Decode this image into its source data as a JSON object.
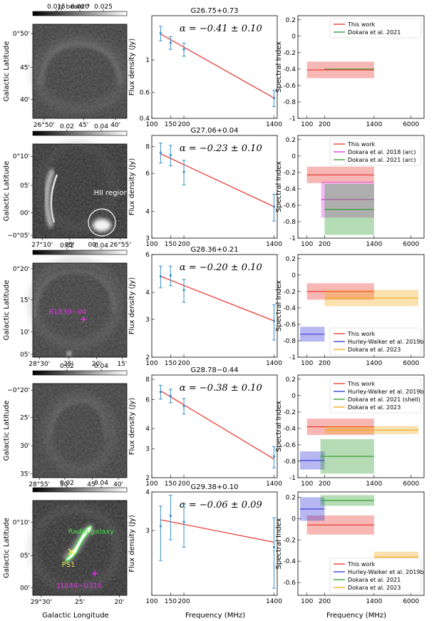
{
  "xlabels": {
    "image": "Galactic Longitude",
    "flux": "Frequency (MHz)",
    "index": "Frequency (MHz)"
  },
  "ylabels": {
    "image": "Galactic Latitude",
    "flux": "Flux density (Jy)",
    "index": "Spectral Index"
  },
  "colorbar_label": "Jy beam⁻¹",
  "colors": {
    "this_work": "#e8312a",
    "hw": "#3030d8",
    "dokara2018": "#dd33dd",
    "dokara2021": "#2a9a2a",
    "dokara2023": "#f2a81c",
    "errbar": "#3a8fc8",
    "annot_hii": "#ffffff",
    "annot_magenta": "#dd33dd",
    "annot_green": "#4ddc4d",
    "annot_yellow": "#e8e84a"
  },
  "chart_data": [
    {
      "type": "image",
      "colorbar_ticks": [
        "0.015",
        "0.020",
        "0.025"
      ],
      "colorbar_range": [
        0.01,
        0.03
      ],
      "colorbar_ticks_values": [
        0.015,
        0.02,
        0.025
      ],
      "x_ticks": [
        "26°50'",
        "45'",
        "40'"
      ],
      "y_ticks": [
        "0°50'",
        "45'",
        "40'"
      ],
      "annotations": []
    },
    {
      "type": "scatter",
      "title": "G26.75+0.73",
      "alpha_label": "α = −0.41 ± 0.10",
      "x": [
        121,
        150,
        200,
        1400
      ],
      "y": [
        1.52,
        1.31,
        1.18,
        0.55
      ],
      "yerr_low": [
        0.17,
        0.13,
        0.12,
        0.07
      ],
      "yerr_high": [
        0.17,
        0.13,
        0.12,
        0.07
      ],
      "fit": {
        "x": [
          121,
          1400
        ],
        "y": [
          1.5,
          0.55
        ]
      },
      "xlim": [
        100,
        1500
      ],
      "ylim": [
        0.4,
        2.0
      ],
      "xticks": [
        100,
        150,
        200,
        1400
      ],
      "xtick_labels": [
        "100",
        "150",
        "200",
        "1400"
      ],
      "yticks": [
        0.4,
        0.6,
        1
      ],
      "ytick_labels": [
        "0.4",
        "0.6",
        "1"
      ]
    },
    {
      "type": "spectral_index",
      "xlim": [
        70,
        10000
      ],
      "ylim": [
        -1.0,
        0.25
      ],
      "xticks": [
        100,
        200,
        1400,
        6000
      ],
      "xtick_labels": [
        "100",
        "200",
        "1400",
        "6000"
      ],
      "yticks": [
        -1.0,
        -0.8,
        -0.6,
        -0.4,
        -0.2,
        0,
        0.2
      ],
      "ytick_labels": [
        "-1",
        "-0.8",
        "-0.6",
        "-0.4",
        "-0.2",
        "0",
        "0.2"
      ],
      "legend": [
        "This work",
        "Dokara et al. 2021"
      ],
      "legend_keys": [
        "this_work",
        "dokara2021"
      ],
      "legend_pos": "top-right",
      "series": [
        {
          "name": "This work",
          "key": "this_work",
          "x0": 100,
          "x1": 1400,
          "value": -0.41,
          "err": 0.1
        },
        {
          "name": "Dokara et al. 2021",
          "key": "dokara2021",
          "x0": 200,
          "x1": 1400,
          "value": -0.4,
          "err": 0.0
        }
      ]
    },
    {
      "type": "image",
      "colorbar_ticks": [
        "0.02",
        "0.04"
      ],
      "colorbar_range": [
        0.0,
        0.055
      ],
      "colorbar_ticks_values": [
        0.02,
        0.04
      ],
      "x_ticks": [
        "27°10'",
        "05'",
        "00'",
        "26°55'"
      ],
      "y_ticks": [
        "0°10'",
        "05'",
        "00'",
        "−0°05'"
      ],
      "annotations": [
        {
          "label": "HII region",
          "color_key": "annot_hii"
        }
      ]
    },
    {
      "type": "scatter",
      "title": "G27.06+0.04",
      "alpha_label": "α = −0.23 ± 0.10",
      "x": [
        121,
        150,
        200,
        1400
      ],
      "y": [
        7.5,
        7.3,
        6.1,
        4.2
      ],
      "yerr_low": [
        0.8,
        0.8,
        0.8,
        0.6
      ],
      "yerr_high": [
        0.8,
        0.8,
        0.8,
        0.6
      ],
      "fit": {
        "x": [
          121,
          1400
        ],
        "y": [
          7.4,
          4.2
        ]
      },
      "xlim": [
        100,
        1500
      ],
      "ylim": [
        3.0,
        9.0
      ],
      "xticks": [
        100,
        150,
        200,
        1400
      ],
      "xtick_labels": [
        "100",
        "150",
        "200",
        "1400"
      ],
      "yticks": [
        3,
        4,
        6,
        8
      ],
      "ytick_labels": [
        "3",
        "4",
        "6",
        "8"
      ]
    },
    {
      "type": "spectral_index",
      "xlim": [
        70,
        10000
      ],
      "ylim": [
        -1.0,
        0.25
      ],
      "xticks": [
        100,
        200,
        1400,
        6000
      ],
      "xtick_labels": [
        "100",
        "200",
        "1400",
        "6000"
      ],
      "yticks": [
        -1.0,
        -0.8,
        -0.6,
        -0.4,
        -0.2,
        0,
        0.2
      ],
      "ytick_labels": [
        "-1",
        "-0.8",
        "-0.6",
        "-0.4",
        "-0.2",
        "0",
        "0.2"
      ],
      "legend": [
        "This work",
        "Dokara et al. 2018 (arc)",
        "Dokara et al. 2021 (arc)"
      ],
      "legend_keys": [
        "this_work",
        "dokara2018",
        "dokara2021"
      ],
      "legend_pos": "top-right",
      "series": [
        {
          "name": "This work",
          "key": "this_work",
          "x0": 100,
          "x1": 1400,
          "value": -0.23,
          "err": 0.1
        },
        {
          "name": "Dokara et al. 2018 (arc)",
          "key": "dokara2018",
          "x0": 175,
          "x1": 1400,
          "value": -0.53,
          "err": 0.22
        },
        {
          "name": "Dokara et al. 2021 (arc)",
          "key": "dokara2021",
          "x0": 200,
          "x1": 1400,
          "value": -0.65,
          "err": 0.31
        }
      ]
    },
    {
      "type": "image",
      "colorbar_ticks": [
        "0.02",
        "0.04"
      ],
      "colorbar_range": [
        0.0,
        0.055
      ],
      "colorbar_ticks_values": [
        0.02,
        0.04
      ],
      "x_ticks": [
        "28°30'",
        "25'",
        "20'",
        "15'"
      ],
      "y_ticks": [
        "0°20'",
        "15'",
        "10'",
        "05'"
      ],
      "annotations": [
        {
          "label": "B1839−04",
          "color_key": "annot_magenta"
        }
      ]
    },
    {
      "type": "scatter",
      "title": "G28.36+0.21",
      "alpha_label": "α = −0.20 ± 0.10",
      "x": [
        121,
        150,
        200,
        1400
      ],
      "y": [
        4.75,
        4.8,
        4.1,
        2.95
      ],
      "yerr_low": [
        0.55,
        0.5,
        0.5,
        0.55
      ],
      "yerr_high": [
        0.55,
        0.5,
        0.5,
        0.55
      ],
      "fit": {
        "x": [
          121,
          1400
        ],
        "y": [
          4.75,
          2.95
        ]
      },
      "xlim": [
        100,
        1500
      ],
      "ylim": [
        2.0,
        6.0
      ],
      "xticks": [
        100,
        150,
        200,
        1400
      ],
      "xtick_labels": [
        "100",
        "150",
        "200",
        "1400"
      ],
      "yticks": [
        2,
        3,
        4,
        6
      ],
      "ytick_labels": [
        "2",
        "3",
        "4",
        "6"
      ]
    },
    {
      "type": "spectral_index",
      "xlim": [
        70,
        10000
      ],
      "ylim": [
        -1.0,
        0.25
      ],
      "xticks": [
        100,
        200,
        1400,
        6000
      ],
      "xtick_labels": [
        "100",
        "200",
        "1400",
        "6000"
      ],
      "yticks": [
        -1.0,
        -0.8,
        -0.6,
        -0.4,
        -0.2,
        0,
        0.2
      ],
      "ytick_labels": [
        "-1",
        "-0.8",
        "-0.6",
        "-0.4",
        "-0.2",
        "0",
        "0.2"
      ],
      "legend": [
        "This work",
        "Hurley-Walker et al. 2019b",
        "Dokara et al. 2023"
      ],
      "legend_keys": [
        "this_work",
        "hw",
        "dokara2023"
      ],
      "legend_pos": "bottom-right",
      "series": [
        {
          "name": "This work",
          "key": "this_work",
          "x0": 100,
          "x1": 1400,
          "value": -0.2,
          "err": 0.1
        },
        {
          "name": "Hurley-Walker et al. 2019b",
          "key": "hw",
          "x0": 76,
          "x1": 200,
          "value": -0.72,
          "err": 0.09
        },
        {
          "name": "Dokara et al. 2023",
          "key": "dokara2023",
          "x0": 200,
          "x1": 8000,
          "value": -0.28,
          "err": 0.1
        }
      ]
    },
    {
      "type": "image",
      "colorbar_ticks": [
        "0.02",
        "0.04"
      ],
      "colorbar_range": [
        0.0,
        0.055
      ],
      "colorbar_ticks_values": [
        0.02,
        0.04
      ],
      "x_ticks": [
        "28°55'",
        "50'",
        "45'",
        "40'"
      ],
      "y_ticks": [
        "−0°20'",
        "25'",
        "30'",
        "35'"
      ],
      "annotations": []
    },
    {
      "type": "scatter",
      "title": "G28.78−0.44",
      "alpha_label": "α = −0.38 ± 0.10",
      "x": [
        121,
        150,
        200,
        1400
      ],
      "y": [
        6.7,
        6.35,
        5.5,
        2.7
      ],
      "yerr_low": [
        0.65,
        0.6,
        0.6,
        0.4
      ],
      "yerr_high": [
        0.65,
        0.6,
        0.6,
        0.4
      ],
      "fit": {
        "x": [
          121,
          1400
        ],
        "y": [
          6.8,
          2.6
        ]
      },
      "xlim": [
        100,
        1500
      ],
      "ylim": [
        2.0,
        8.5
      ],
      "xticks": [
        100,
        150,
        200,
        1400
      ],
      "xtick_labels": [
        "100",
        "150",
        "200",
        "1400"
      ],
      "yticks": [
        2,
        3,
        4,
        6,
        8
      ],
      "ytick_labels": [
        "2",
        "3",
        "4",
        "6",
        "8"
      ]
    },
    {
      "type": "spectral_index",
      "xlim": [
        70,
        10000
      ],
      "ylim": [
        -1.0,
        0.25
      ],
      "xticks": [
        100,
        200,
        1400,
        6000
      ],
      "xtick_labels": [
        "100",
        "200",
        "1400",
        "6000"
      ],
      "yticks": [
        -1.0,
        -0.8,
        -0.6,
        -0.4,
        -0.2,
        0,
        0.2
      ],
      "ytick_labels": [
        "-1",
        "-0.8",
        "-0.6",
        "-0.4",
        "-0.2",
        "0",
        "0.2"
      ],
      "legend": [
        "This work",
        "Hurley-Walker et al. 2019b",
        "Dokara et al. 2021 (shell)",
        "Dokara et al. 2023"
      ],
      "legend_keys": [
        "this_work",
        "hw",
        "dokara2021",
        "dokara2023"
      ],
      "legend_pos": "top-right",
      "series": [
        {
          "name": "This work",
          "key": "this_work",
          "x0": 100,
          "x1": 1400,
          "value": -0.38,
          "err": 0.1
        },
        {
          "name": "Hurley-Walker et al. 2019b",
          "key": "hw",
          "x0": 76,
          "x1": 200,
          "value": -0.79,
          "err": 0.11
        },
        {
          "name": "Dokara et al. 2021 (shell)",
          "key": "dokara2021",
          "x0": 170,
          "x1": 1400,
          "value": -0.74,
          "err": 0.21
        },
        {
          "name": "Dokara et al. 2023",
          "key": "dokara2023",
          "x0": 200,
          "x1": 8000,
          "value": -0.42,
          "err": 0.05
        }
      ]
    },
    {
      "type": "image",
      "colorbar_ticks": [
        "0.02",
        "0.04"
      ],
      "colorbar_range": [
        0.0,
        0.055
      ],
      "colorbar_ticks_values": [
        0.02,
        0.04
      ],
      "x_ticks": [
        "29°30'",
        "25'",
        "20'"
      ],
      "y_ticks": [
        "0°10'",
        "05'",
        "00'"
      ],
      "annotations": [
        {
          "label": "Radio galaxy",
          "color_key": "annot_green"
        },
        {
          "label": "PS1",
          "color_key": "annot_yellow"
        },
        {
          "label": "J1844−0310",
          "color_key": "annot_magenta"
        }
      ]
    },
    {
      "type": "scatter",
      "title": "G29.38+0.10",
      "alpha_label": "α = −0.06 ± 0.09",
      "x": [
        121,
        150,
        200,
        1400
      ],
      "y": [
        3.1,
        3.35,
        3.2,
        2.65
      ],
      "yerr_low": [
        0.7,
        0.55,
        0.55,
        0.7
      ],
      "yerr_high": [
        0.5,
        0.55,
        0.45,
        0.65
      ],
      "fit": {
        "x": [
          121,
          1400
        ],
        "y": [
          3.25,
          2.75
        ]
      },
      "xlim": [
        100,
        1500
      ],
      "ylim": [
        1.85,
        4.0
      ],
      "xticks": [
        100,
        150,
        200,
        1400
      ],
      "xtick_labels": [
        "100",
        "150",
        "200",
        "1400"
      ],
      "yticks": [
        3,
        4
      ],
      "ytick_labels": [
        "3",
        "4"
      ]
    },
    {
      "type": "spectral_index",
      "xlim": [
        70,
        10000
      ],
      "ylim": [
        -0.72,
        0.25
      ],
      "xticks": [
        100,
        200,
        1400,
        6000
      ],
      "xtick_labels": [
        "100",
        "200",
        "1400",
        "6000"
      ],
      "yticks": [
        -0.6,
        -0.4,
        -0.2,
        0,
        0.2
      ],
      "ytick_labels": [
        "-0.6",
        "-0.4",
        "-0.2",
        "0",
        "0.2"
      ],
      "legend": [
        "This work",
        "Hurley-Walker et al. 2019b",
        "Dokara et al. 2021",
        "Dokara et al. 2023"
      ],
      "legend_keys": [
        "this_work",
        "hw",
        "dokara2021",
        "dokara2023"
      ],
      "legend_pos": "bottom-right",
      "series": [
        {
          "name": "This work",
          "key": "this_work",
          "x0": 100,
          "x1": 1400,
          "value": -0.06,
          "err": 0.09
        },
        {
          "name": "Hurley-Walker et al. 2019b",
          "key": "hw",
          "x0": 76,
          "x1": 200,
          "value": 0.09,
          "err": 0.11
        },
        {
          "name": "Dokara et al. 2021",
          "key": "dokara2021",
          "x0": 170,
          "x1": 1400,
          "value": 0.17,
          "err": 0.05
        },
        {
          "name": "Dokara et al. 2023",
          "key": "dokara2023",
          "x0": 1400,
          "x1": 8000,
          "value": -0.36,
          "err": 0.05
        }
      ]
    }
  ]
}
